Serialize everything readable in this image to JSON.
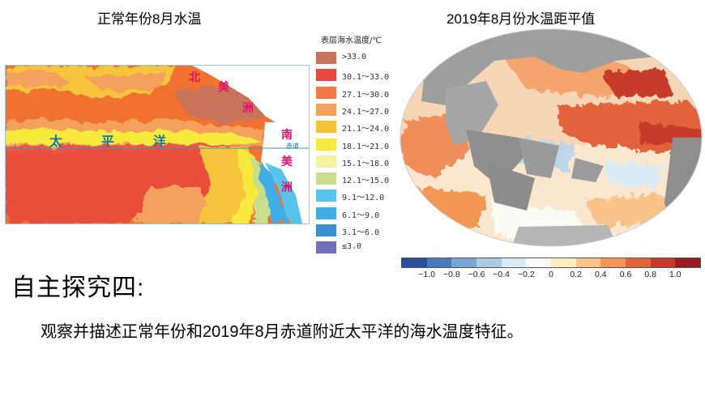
{
  "left_panel": {
    "title": "正常年份8月水温",
    "labels": {
      "north_america": [
        "北",
        "美",
        "洲"
      ],
      "pacific": [
        "太",
        "平",
        "洋"
      ],
      "south_america": [
        "南",
        "美",
        "洲"
      ],
      "equator": "赤道"
    },
    "legend_title": "表层海水温度/℃",
    "legend": [
      {
        "label": ">33.0",
        "color": "#c9735a"
      },
      {
        "label": "30.1～33.0",
        "color": "#e8483f"
      },
      {
        "label": "27.1～30.0",
        "color": "#ef7a46"
      },
      {
        "label": "24.1～27.0",
        "color": "#f3a15c"
      },
      {
        "label": "21.1～24.0",
        "color": "#f6c23a"
      },
      {
        "label": "18.1～21.0",
        "color": "#f7ea3c"
      },
      {
        "label": "15.1～18.0",
        "color": "#f6f2a2"
      },
      {
        "label": "12.1～15.0",
        "color": "#c9dd8c"
      },
      {
        "label": "9.1～12.0",
        "color": "#58c3ec"
      },
      {
        "label": "6.1～9.0",
        "color": "#41ade6"
      },
      {
        "label": "3.1～6.0",
        "color": "#3c8fd0"
      },
      {
        "label": "≤3.0",
        "color": "#6f72b6"
      }
    ]
  },
  "right_panel": {
    "title": "2019年8月份水温距平值",
    "colorbar": {
      "colors": [
        "#2b4f9b",
        "#4a79bd",
        "#7aa6d5",
        "#a9cbe6",
        "#d9ebf5",
        "#fbfbf6",
        "#fdecc0",
        "#f9c287",
        "#f39755",
        "#e2643a",
        "#c63a2a",
        "#9b1b22"
      ],
      "ticks": [
        "−1.0",
        "−0.8",
        "−0.6",
        "−0.4",
        "−0.2",
        "0",
        "0.2",
        "0.4",
        "0.6",
        "0.8",
        "1.0"
      ]
    }
  },
  "section_heading": "自主探究四:",
  "question": "观察并描述正常年份和2019年8月赤道附近太平洋的海水温度特征。"
}
